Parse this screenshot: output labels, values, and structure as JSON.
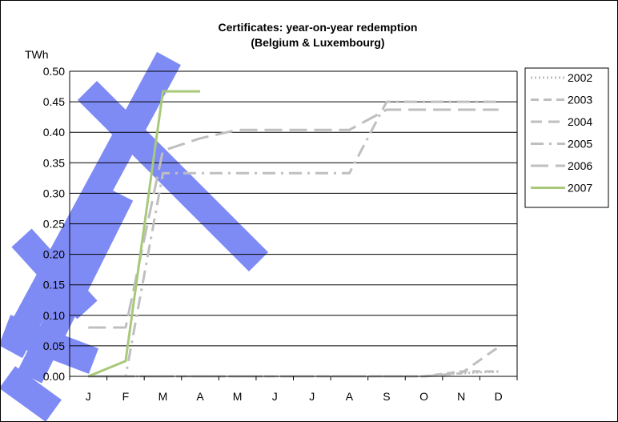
{
  "chart_data": {
    "type": "line",
    "title": "Certificates: year-on-year redemption",
    "subtitle": "(Belgium & Luxembourg)",
    "ylabel": "TWh",
    "xlabel": "",
    "categories": [
      "J",
      "F",
      "M",
      "A",
      "M",
      "J",
      "J",
      "A",
      "S",
      "O",
      "N",
      "D"
    ],
    "ylim": [
      0,
      0.5
    ],
    "yticks": [
      "0.00",
      "0.05",
      "0.10",
      "0.15",
      "0.20",
      "0.25",
      "0.30",
      "0.35",
      "0.40",
      "0.45",
      "0.50"
    ],
    "grid": true,
    "legend_position": "right",
    "series": [
      {
        "name": "2002",
        "color": "#bfbfbf",
        "dash": "dotted",
        "values": [
          0,
          0,
          0,
          0,
          0,
          0,
          0,
          0,
          0,
          0,
          0.005,
          0.008
        ]
      },
      {
        "name": "2003",
        "color": "#bfbfbf",
        "dash": "short-dash",
        "values": [
          0,
          0,
          0,
          0,
          0,
          0,
          0,
          0,
          0,
          0,
          0.008,
          0.008
        ]
      },
      {
        "name": "2004",
        "color": "#bfbfbf",
        "dash": "dash",
        "values": [
          0,
          0,
          0,
          0,
          0,
          0,
          0,
          0,
          0,
          0,
          0.005,
          0.048
        ]
      },
      {
        "name": "2005",
        "color": "#bfbfbf",
        "dash": "dash-dot",
        "values": [
          0,
          0,
          0.333,
          0.333,
          0.333,
          0.333,
          0.333,
          0.333,
          0.45,
          0.45,
          0.45,
          0.45
        ]
      },
      {
        "name": "2006",
        "color": "#bfbfbf",
        "dash": "long-dash",
        "values": [
          0.08,
          0.08,
          0.37,
          0.39,
          0.404,
          0.404,
          0.404,
          0.404,
          0.437,
          0.437,
          0.437,
          0.437
        ]
      },
      {
        "name": "2007",
        "color": "#a9c97a",
        "dash": "solid",
        "values": [
          0,
          0.025,
          0.467,
          0.467,
          null,
          null,
          null,
          null,
          null,
          null,
          null,
          null
        ]
      }
    ]
  },
  "colors": {
    "watermark": "#7f8bf5",
    "grid": "#000000",
    "background": "#ffffff"
  },
  "watermark": {
    "description": "decorative blue diagonal stroke shapes"
  }
}
